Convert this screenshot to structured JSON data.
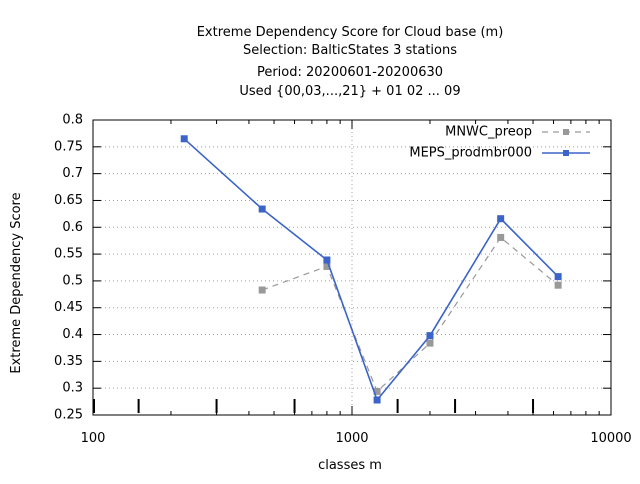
{
  "chart_data": {
    "type": "line",
    "title_lines": [
      "Extreme Dependency Score  for Cloud base (m)",
      "Selection: BalticStates      3 stations",
      "Period: 20200601-20200630",
      "Used {00,03,...,21} + 01 02 ... 09"
    ],
    "xlabel": "classes m",
    "ylabel": "Extreme Dependency Score",
    "x_scale": "log",
    "xlim": [
      100,
      10000
    ],
    "ylim": [
      0.25,
      0.8
    ],
    "x_ticks": [
      100,
      1000,
      10000
    ],
    "x_tick_labels": [
      "100",
      "1000",
      "10000"
    ],
    "y_ticks": [
      0.25,
      0.3,
      0.35,
      0.4,
      0.45,
      0.5,
      0.55,
      0.6,
      0.65,
      0.7,
      0.75,
      0.8
    ],
    "y_tick_labels": [
      "0.25",
      "0.3",
      "0.35",
      "0.4",
      "0.45",
      "0.5",
      "0.55",
      "0.6",
      "0.65",
      "0.7",
      "0.75",
      "0.8"
    ],
    "grid": true,
    "legend_position": "top-right",
    "class_marks": [
      150,
      300,
      600,
      1500,
      2500,
      5000
    ],
    "series": [
      {
        "name": "MNWC_preop",
        "color": "#999999",
        "dash": true,
        "x": [
          450,
          800,
          1250,
          2000,
          3750,
          6250
        ],
        "y": [
          0.483,
          0.527,
          0.294,
          0.384,
          0.581,
          0.492
        ]
      },
      {
        "name": "MEPS_prodmbr000",
        "color": "#3c64c8",
        "dash": false,
        "x": [
          225,
          450,
          800,
          1250,
          2000,
          3750,
          6250
        ],
        "y": [
          0.765,
          0.634,
          0.539,
          0.278,
          0.398,
          0.616,
          0.508
        ]
      }
    ]
  }
}
